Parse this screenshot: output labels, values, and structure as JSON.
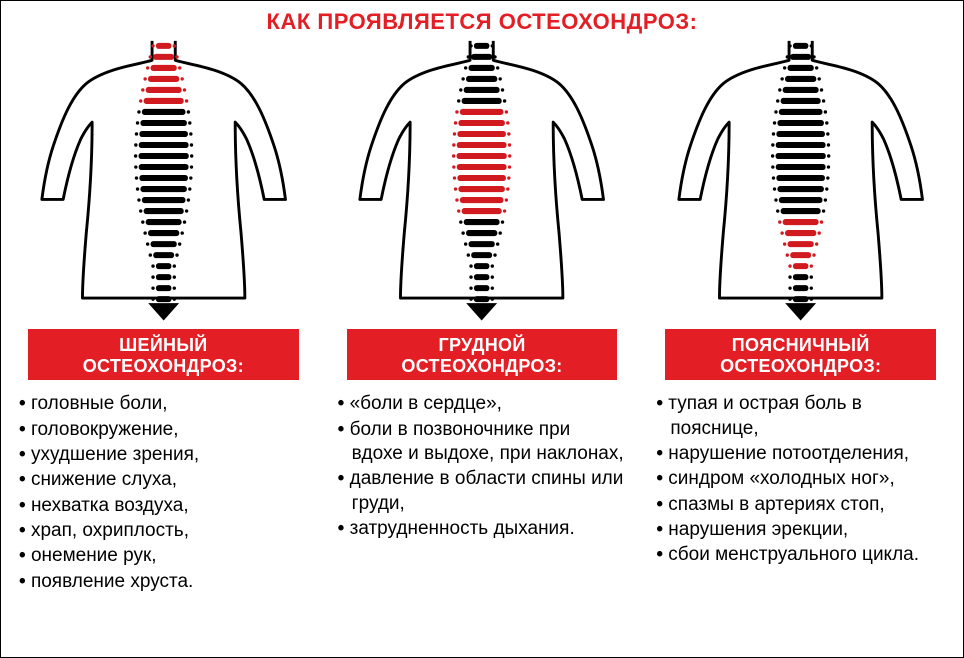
{
  "title": "КАК ПРОЯВЛЯЕТСЯ ОСТЕОХОНДРОЗ:",
  "colors": {
    "accent": "#e31e24",
    "red_vert": "#d11a1f",
    "black": "#000000",
    "bg": "#ffffff"
  },
  "spine": {
    "total_vertebrae": 24,
    "torso_stroke": "#000000",
    "torso_stroke_width": 3
  },
  "sections": [
    {
      "key": "cervical",
      "subtitle": "ШЕЙНЫЙ\nОСТЕОХОНДРОЗ:",
      "highlight_range": [
        0,
        5
      ],
      "symptoms": [
        "головные боли,",
        "головокружение,",
        "ухудшение зрения,",
        "снижение слуха,",
        "нехватка воздуха,",
        "храп, охриплость,",
        "онемение рук,",
        "появление хруста."
      ]
    },
    {
      "key": "thoracic",
      "subtitle": "ГРУДНОЙ\nОСТЕОХОНДРОЗ:",
      "highlight_range": [
        6,
        15
      ],
      "symptoms": [
        "«боли в сердце»,",
        "боли в позвоночнике при вдохе и выдохе, при наклонах,",
        "давление в области спины или груди,",
        "затрудненность дыхания."
      ]
    },
    {
      "key": "lumbar",
      "subtitle": "ПОЯСНИЧНЫЙ\nОСТЕОХОНДРОЗ:",
      "highlight_range": [
        16,
        20
      ],
      "symptoms": [
        "тупая и острая боль в пояснице,",
        "нарушение потоотделения,",
        "синдром «холодных ног»,",
        "спазмы в артериях стоп,",
        "нарушения эрекции,",
        "сбои менструального цикла."
      ]
    }
  ]
}
